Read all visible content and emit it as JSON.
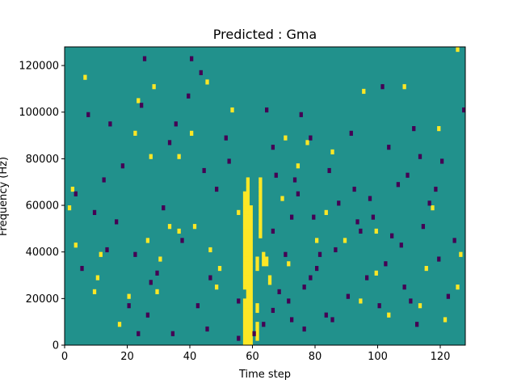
{
  "chart_data": {
    "type": "heatmap",
    "title": "Predicted : Gma",
    "xlabel": "Time step",
    "ylabel": "Frequency (Hz)",
    "xlim": [
      0,
      128
    ],
    "ylim": [
      0,
      128000
    ],
    "x_ticks": [
      0,
      20,
      40,
      60,
      80,
      100,
      120
    ],
    "y_ticks": [
      0,
      20000,
      40000,
      60000,
      80000,
      100000,
      120000
    ],
    "x_tick_labels": [
      "0",
      "20",
      "40",
      "60",
      "80",
      "100",
      "120"
    ],
    "y_tick_labels": [
      "0",
      "20000",
      "40000",
      "60000",
      "80000",
      "100000",
      "120000"
    ],
    "n_time_steps": 128,
    "n_frequency_bins": 64,
    "levels": [
      0,
      1,
      2
    ],
    "colors": {
      "0": "#440154",
      "1": "#21918c",
      "2": "#fde725"
    },
    "background_value": 1,
    "cells": [
      [
        57,
        0,
        2
      ],
      [
        57,
        1,
        2
      ],
      [
        57,
        2,
        2
      ],
      [
        57,
        3,
        2
      ],
      [
        57,
        4,
        2
      ],
      [
        57,
        5,
        2
      ],
      [
        57,
        6,
        2
      ],
      [
        57,
        7,
        2
      ],
      [
        57,
        8,
        2
      ],
      [
        57,
        9,
        2
      ],
      [
        57,
        12,
        2
      ],
      [
        57,
        13,
        2
      ],
      [
        57,
        14,
        2
      ],
      [
        57,
        15,
        2
      ],
      [
        57,
        16,
        2
      ],
      [
        57,
        17,
        2
      ],
      [
        57,
        18,
        2
      ],
      [
        57,
        19,
        2
      ],
      [
        57,
        20,
        2
      ],
      [
        57,
        21,
        2
      ],
      [
        57,
        22,
        2
      ],
      [
        57,
        23,
        2
      ],
      [
        57,
        24,
        2
      ],
      [
        57,
        25,
        2
      ],
      [
        57,
        26,
        2
      ],
      [
        57,
        27,
        2
      ],
      [
        57,
        28,
        2
      ],
      [
        57,
        29,
        2
      ],
      [
        57,
        30,
        2
      ],
      [
        57,
        31,
        2
      ],
      [
        57,
        32,
        2
      ],
      [
        58,
        0,
        2
      ],
      [
        58,
        1,
        2
      ],
      [
        58,
        2,
        2
      ],
      [
        58,
        3,
        2
      ],
      [
        58,
        4,
        2
      ],
      [
        58,
        5,
        2
      ],
      [
        58,
        6,
        2
      ],
      [
        58,
        7,
        2
      ],
      [
        58,
        8,
        2
      ],
      [
        58,
        9,
        2
      ],
      [
        58,
        10,
        2
      ],
      [
        58,
        11,
        2
      ],
      [
        58,
        12,
        2
      ],
      [
        58,
        13,
        2
      ],
      [
        58,
        14,
        2
      ],
      [
        58,
        15,
        2
      ],
      [
        58,
        16,
        2
      ],
      [
        58,
        17,
        2
      ],
      [
        58,
        18,
        2
      ],
      [
        58,
        19,
        2
      ],
      [
        58,
        20,
        2
      ],
      [
        58,
        21,
        2
      ],
      [
        58,
        22,
        2
      ],
      [
        58,
        23,
        2
      ],
      [
        58,
        24,
        2
      ],
      [
        58,
        25,
        2
      ],
      [
        58,
        26,
        2
      ],
      [
        58,
        27,
        2
      ],
      [
        58,
        28,
        2
      ],
      [
        58,
        29,
        2
      ],
      [
        58,
        30,
        2
      ],
      [
        58,
        31,
        2
      ],
      [
        58,
        32,
        2
      ],
      [
        58,
        33,
        2
      ],
      [
        58,
        34,
        2
      ],
      [
        58,
        35,
        2
      ],
      [
        59,
        0,
        2
      ],
      [
        59,
        1,
        2
      ],
      [
        59,
        2,
        2
      ],
      [
        59,
        3,
        2
      ],
      [
        59,
        4,
        2
      ],
      [
        59,
        5,
        2
      ],
      [
        59,
        6,
        2
      ],
      [
        59,
        7,
        2
      ],
      [
        59,
        8,
        2
      ],
      [
        59,
        9,
        2
      ],
      [
        59,
        10,
        2
      ],
      [
        59,
        11,
        2
      ],
      [
        59,
        12,
        2
      ],
      [
        59,
        13,
        2
      ],
      [
        59,
        14,
        2
      ],
      [
        59,
        15,
        2
      ],
      [
        59,
        16,
        2
      ],
      [
        59,
        17,
        2
      ],
      [
        59,
        18,
        2
      ],
      [
        59,
        19,
        2
      ],
      [
        59,
        20,
        2
      ],
      [
        59,
        21,
        2
      ],
      [
        59,
        22,
        2
      ],
      [
        59,
        23,
        2
      ],
      [
        59,
        24,
        2
      ],
      [
        59,
        25,
        2
      ],
      [
        59,
        26,
        2
      ],
      [
        59,
        27,
        2
      ],
      [
        59,
        28,
        2
      ],
      [
        59,
        29,
        2
      ],
      [
        62,
        23,
        2
      ],
      [
        62,
        24,
        2
      ],
      [
        62,
        25,
        2
      ],
      [
        62,
        26,
        2
      ],
      [
        62,
        27,
        2
      ],
      [
        62,
        28,
        2
      ],
      [
        62,
        29,
        2
      ],
      [
        62,
        30,
        2
      ],
      [
        62,
        31,
        2
      ],
      [
        62,
        32,
        2
      ],
      [
        62,
        33,
        2
      ],
      [
        62,
        34,
        2
      ],
      [
        62,
        35,
        2
      ],
      [
        61,
        1,
        2
      ],
      [
        61,
        2,
        2
      ],
      [
        61,
        3,
        2
      ],
      [
        61,
        4,
        2
      ],
      [
        61,
        7,
        2
      ],
      [
        61,
        8,
        2
      ],
      [
        61,
        16,
        2
      ],
      [
        61,
        17,
        2
      ],
      [
        61,
        18,
        2
      ],
      [
        63,
        17,
        2
      ],
      [
        63,
        18,
        2
      ],
      [
        63,
        19,
        2
      ],
      [
        64,
        17,
        2
      ],
      [
        64,
        18,
        2
      ],
      [
        65,
        13,
        2
      ],
      [
        65,
        14,
        2
      ],
      [
        1,
        29,
        2
      ],
      [
        3,
        21,
        2
      ],
      [
        10,
        14,
        2
      ],
      [
        11,
        19,
        2
      ],
      [
        17,
        4,
        2
      ],
      [
        20,
        10,
        2
      ],
      [
        22,
        45,
        2
      ],
      [
        27,
        40,
        2
      ],
      [
        30,
        18,
        2
      ],
      [
        33,
        25,
        2
      ],
      [
        23,
        52,
        2
      ],
      [
        28,
        55,
        2
      ],
      [
        29,
        11,
        2
      ],
      [
        36,
        24,
        2
      ],
      [
        45,
        56,
        2
      ],
      [
        48,
        12,
        2
      ],
      [
        49,
        16,
        2
      ],
      [
        53,
        50,
        2
      ],
      [
        55,
        28,
        2
      ],
      [
        77,
        43,
        2
      ],
      [
        80,
        22,
        2
      ],
      [
        85,
        41,
        2
      ],
      [
        89,
        22,
        2
      ],
      [
        95,
        54,
        2
      ],
      [
        99,
        24,
        2
      ],
      [
        103,
        6,
        2
      ],
      [
        108,
        55,
        2
      ],
      [
        119,
        46,
        2
      ],
      [
        121,
        5,
        2
      ],
      [
        125,
        12,
        2
      ],
      [
        6,
        57,
        2
      ],
      [
        41,
        25,
        2
      ],
      [
        71,
        17,
        2
      ],
      [
        117,
        29,
        2
      ],
      [
        2,
        33,
        2
      ],
      [
        9,
        11,
        2
      ],
      [
        26,
        22,
        2
      ],
      [
        36,
        40,
        2
      ],
      [
        40,
        45,
        2
      ],
      [
        46,
        20,
        2
      ],
      [
        69,
        31,
        2
      ],
      [
        70,
        44,
        2
      ],
      [
        74,
        38,
        2
      ],
      [
        83,
        28,
        2
      ],
      [
        94,
        9,
        2
      ],
      [
        99,
        15,
        2
      ],
      [
        113,
        8,
        2
      ],
      [
        115,
        16,
        2
      ],
      [
        126,
        19,
        2
      ],
      [
        125,
        63,
        2
      ],
      [
        5,
        16,
        0
      ],
      [
        7,
        49,
        0
      ],
      [
        9,
        28,
        0
      ],
      [
        12,
        35,
        0
      ],
      [
        13,
        20,
        0
      ],
      [
        16,
        26,
        0
      ],
      [
        20,
        8,
        0
      ],
      [
        22,
        19,
        0
      ],
      [
        25,
        61,
        0
      ],
      [
        27,
        13,
        0
      ],
      [
        33,
        43,
        0
      ],
      [
        34,
        2,
        0
      ],
      [
        37,
        22,
        0
      ],
      [
        40,
        61,
        0
      ],
      [
        42,
        8,
        0
      ],
      [
        44,
        37,
        0
      ],
      [
        46,
        14,
        0
      ],
      [
        52,
        39,
        0
      ],
      [
        55,
        9,
        0
      ],
      [
        55,
        1,
        0
      ],
      [
        66,
        24,
        0
      ],
      [
        68,
        11,
        0
      ],
      [
        70,
        19,
        0
      ],
      [
        72,
        5,
        0
      ],
      [
        74,
        32,
        0
      ],
      [
        76,
        12,
        0
      ],
      [
        78,
        14,
        0
      ],
      [
        79,
        27,
        0
      ],
      [
        80,
        16,
        0
      ],
      [
        81,
        19,
        0
      ],
      [
        85,
        5,
        0
      ],
      [
        86,
        20,
        0
      ],
      [
        90,
        10,
        0
      ],
      [
        92,
        33,
        0
      ],
      [
        94,
        24,
        0
      ],
      [
        96,
        14,
        0
      ],
      [
        98,
        27,
        0
      ],
      [
        100,
        8,
        0
      ],
      [
        102,
        17,
        0
      ],
      [
        104,
        23,
        0
      ],
      [
        106,
        34,
        0
      ],
      [
        108,
        12,
        0
      ],
      [
        110,
        9,
        0
      ],
      [
        112,
        4,
        0
      ],
      [
        113,
        40,
        0
      ],
      [
        116,
        30,
        0
      ],
      [
        119,
        18,
        0
      ],
      [
        122,
        10,
        0
      ],
      [
        124,
        22,
        0
      ],
      [
        127,
        50,
        0
      ],
      [
        3,
        32,
        0
      ],
      [
        14,
        47,
        0
      ],
      [
        18,
        38,
        0
      ],
      [
        24,
        51,
        0
      ],
      [
        31,
        29,
        0
      ],
      [
        35,
        47,
        0
      ],
      [
        39,
        53,
        0
      ],
      [
        43,
        58,
        0
      ],
      [
        48,
        33,
        0
      ],
      [
        51,
        44,
        0
      ],
      [
        64,
        50,
        0
      ],
      [
        66,
        42,
        0
      ],
      [
        67,
        36,
        0
      ],
      [
        72,
        27,
        0
      ],
      [
        73,
        35,
        0
      ],
      [
        75,
        49,
        0
      ],
      [
        78,
        44,
        0
      ],
      [
        84,
        37,
        0
      ],
      [
        87,
        30,
        0
      ],
      [
        91,
        45,
        0
      ],
      [
        93,
        26,
        0
      ],
      [
        97,
        31,
        0
      ],
      [
        101,
        55,
        0
      ],
      [
        103,
        42,
        0
      ],
      [
        107,
        21,
        0
      ],
      [
        109,
        36,
        0
      ],
      [
        111,
        46,
        0
      ],
      [
        114,
        25,
        0
      ],
      [
        118,
        33,
        0
      ],
      [
        120,
        39,
        0
      ],
      [
        23,
        2,
        0
      ],
      [
        26,
        6,
        0
      ],
      [
        29,
        15,
        0
      ],
      [
        45,
        3,
        0
      ],
      [
        60,
        2,
        0
      ],
      [
        63,
        4,
        0
      ],
      [
        66,
        7,
        0
      ],
      [
        71,
        9,
        0
      ],
      [
        76,
        3,
        0
      ],
      [
        83,
        6,
        0
      ]
    ]
  }
}
